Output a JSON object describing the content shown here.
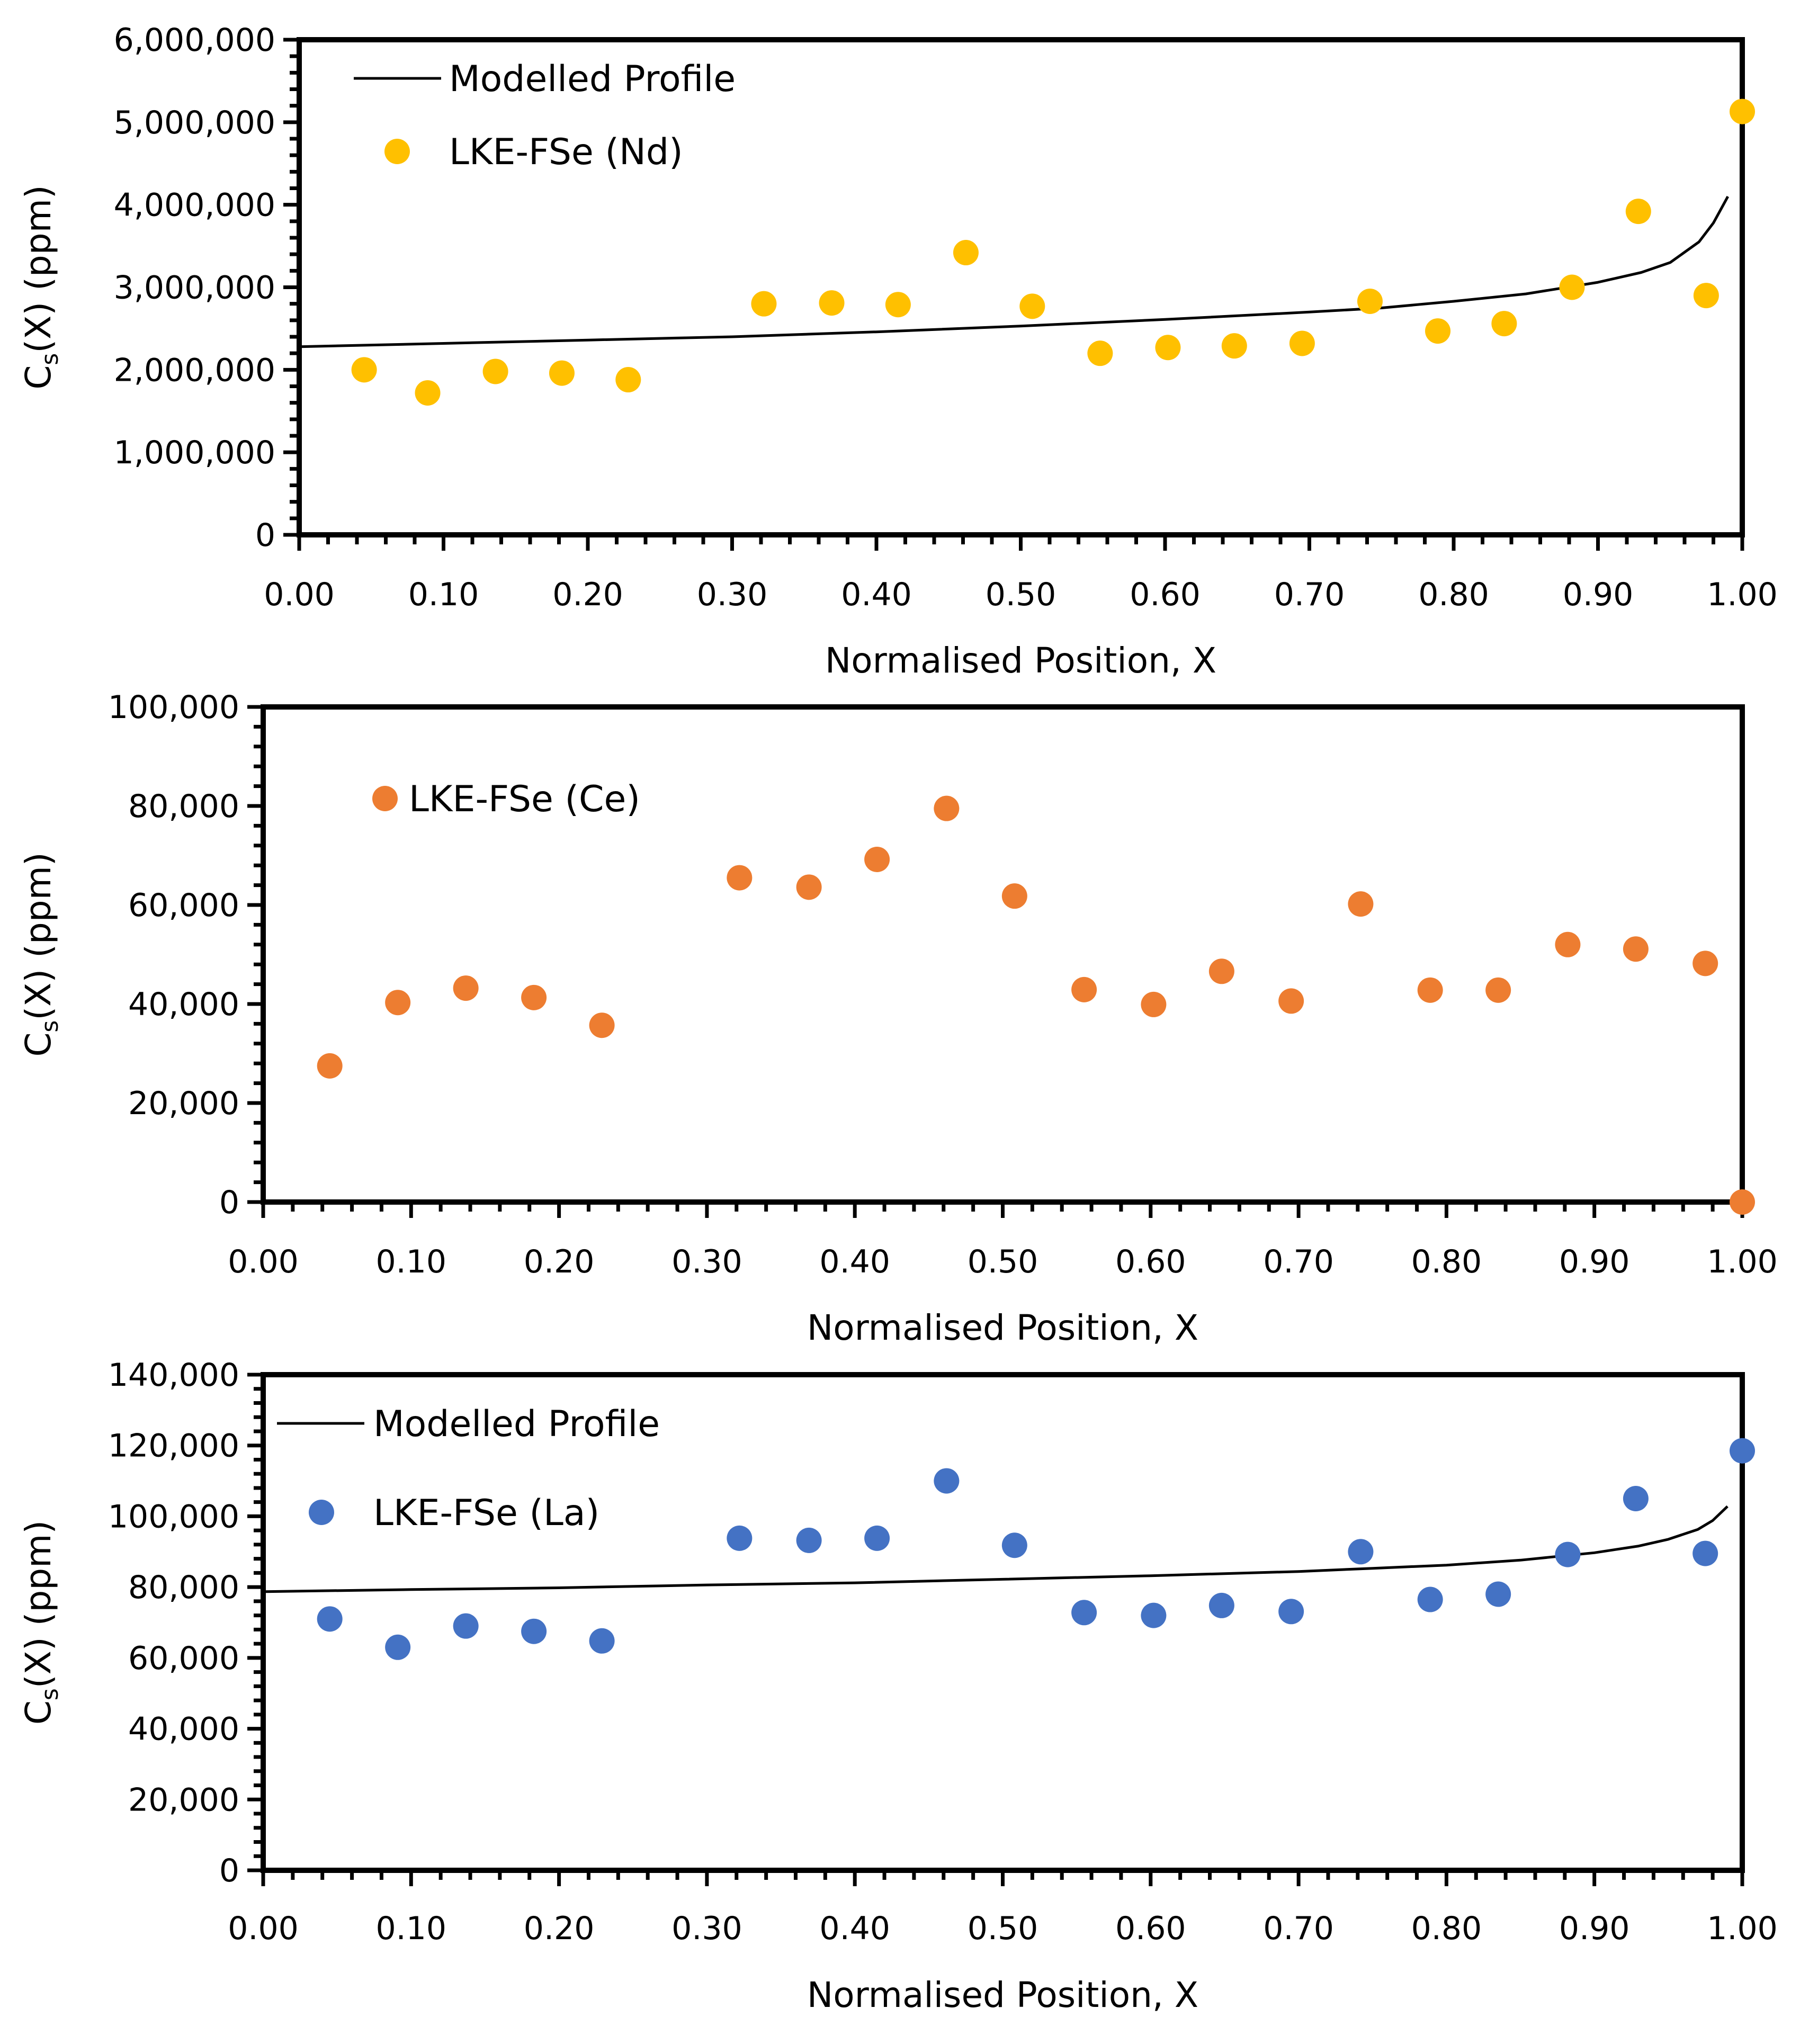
{
  "chart_data": [
    {
      "type": "scatter",
      "xlabel": "Normalised Position, X",
      "ylabel": {
        "main": "C",
        "sub": "s",
        "rest": "(X) (ppm)"
      },
      "xlim": [
        0,
        1
      ],
      "ylim": [
        0,
        6000000
      ],
      "xticks": [
        0,
        0.1,
        0.2,
        0.3,
        0.4,
        0.5,
        0.6,
        0.7,
        0.8,
        0.9,
        1.0
      ],
      "xtick_labels": [
        "0.00",
        "0.10",
        "0.20",
        "0.30",
        "0.40",
        "0.50",
        "0.60",
        "0.70",
        "0.80",
        "0.90",
        "1.00"
      ],
      "yticks": [
        0,
        1000000,
        2000000,
        3000000,
        4000000,
        5000000,
        6000000
      ],
      "ytick_labels": [
        "0",
        "1,000,000",
        "2,000,000",
        "3,000,000",
        "4,000,000",
        "5,000,000",
        "6,000,000"
      ],
      "legend_position": "top-left",
      "series": [
        {
          "name": "Modelled Profile",
          "kind": "line",
          "color": "#000000",
          "x": [
            0,
            0.1,
            0.2,
            0.3,
            0.4,
            0.5,
            0.6,
            0.7,
            0.75,
            0.8,
            0.85,
            0.9,
            0.93,
            0.95,
            0.97,
            0.98,
            0.99
          ],
          "y": [
            2280000,
            2320000,
            2360000,
            2400000,
            2460000,
            2530000,
            2610000,
            2700000,
            2750000,
            2830000,
            2920000,
            3060000,
            3180000,
            3300000,
            3550000,
            3780000,
            4100000
          ]
        },
        {
          "name": "LKE-FSe (Nd)",
          "kind": "scatter",
          "color": "#FFC000",
          "x": [
            0.045,
            0.089,
            0.136,
            0.182,
            0.228,
            0.322,
            0.369,
            0.415,
            0.462,
            0.508,
            0.555,
            0.602,
            0.648,
            0.695,
            0.742,
            0.789,
            0.835,
            0.882,
            0.928,
            0.975,
            1.0
          ],
          "y": [
            2000000,
            1720000,
            1980000,
            1960000,
            1880000,
            2800000,
            2810000,
            2790000,
            3420000,
            2770000,
            2200000,
            2270000,
            2290000,
            2320000,
            2830000,
            2470000,
            2560000,
            3000000,
            3920000,
            2900000,
            5130000
          ]
        }
      ]
    },
    {
      "type": "scatter",
      "xlabel": "Normalised Position, X",
      "ylabel": {
        "main": "C",
        "sub": "s",
        "rest": "(X) (ppm)"
      },
      "xlim": [
        0,
        1
      ],
      "ylim": [
        0,
        100000
      ],
      "xticks": [
        0,
        0.1,
        0.2,
        0.3,
        0.4,
        0.5,
        0.6,
        0.7,
        0.8,
        0.9,
        1.0
      ],
      "xtick_labels": [
        "0.00",
        "0.10",
        "0.20",
        "0.30",
        "0.40",
        "0.50",
        "0.60",
        "0.70",
        "0.80",
        "0.90",
        "1.00"
      ],
      "yticks": [
        0,
        20000,
        40000,
        60000,
        80000,
        100000
      ],
      "ytick_labels": [
        "0",
        "20,000",
        "40,000",
        "60,000",
        "80,000",
        "100,000"
      ],
      "legend_position": "top-left",
      "series": [
        {
          "name": "LKE-FSe (Ce)",
          "kind": "scatter",
          "color": "#ED7D31",
          "x": [
            0.045,
            0.091,
            0.137,
            0.183,
            0.229,
            0.322,
            0.369,
            0.415,
            0.462,
            0.508,
            0.555,
            0.602,
            0.648,
            0.695,
            0.742,
            0.789,
            0.835,
            0.882,
            0.928,
            0.975,
            1.0
          ],
          "y": [
            27500,
            40300,
            43200,
            41300,
            35700,
            65500,
            63600,
            69200,
            79500,
            61800,
            42900,
            39900,
            46600,
            40600,
            60200,
            42800,
            42800,
            52000,
            51100,
            48200,
            0
          ]
        }
      ]
    },
    {
      "type": "scatter",
      "xlabel": "Normalised Position, X",
      "ylabel": {
        "main": "C",
        "sub": "s",
        "rest": "(X) (ppm)"
      },
      "xlim": [
        0,
        1
      ],
      "ylim": [
        0,
        140000
      ],
      "xticks": [
        0,
        0.1,
        0.2,
        0.3,
        0.4,
        0.5,
        0.6,
        0.7,
        0.8,
        0.9,
        1.0
      ],
      "xtick_labels": [
        "0.00",
        "0.10",
        "0.20",
        "0.30",
        "0.40",
        "0.50",
        "0.60",
        "0.70",
        "0.80",
        "0.90",
        "1.00"
      ],
      "yticks": [
        0,
        20000,
        40000,
        60000,
        80000,
        100000,
        120000,
        140000
      ],
      "ytick_labels": [
        "0",
        "20,000",
        "40,000",
        "60,000",
        "80,000",
        "100,000",
        "120,000",
        "140,000"
      ],
      "legend_position": "top-left",
      "series": [
        {
          "name": "Modelled Profile",
          "kind": "line",
          "color": "#000000",
          "x": [
            0,
            0.1,
            0.2,
            0.3,
            0.4,
            0.5,
            0.6,
            0.7,
            0.75,
            0.8,
            0.85,
            0.9,
            0.93,
            0.95,
            0.97,
            0.98,
            0.99
          ],
          "y": [
            78700,
            79300,
            79800,
            80600,
            81200,
            82200,
            83200,
            84400,
            85300,
            86200,
            87600,
            89700,
            91600,
            93500,
            96300,
            98800,
            102800
          ]
        },
        {
          "name": "LKE-FSe (La)",
          "kind": "scatter",
          "color": "#4472C4",
          "x": [
            0.045,
            0.091,
            0.137,
            0.183,
            0.229,
            0.322,
            0.369,
            0.415,
            0.462,
            0.508,
            0.555,
            0.602,
            0.648,
            0.695,
            0.742,
            0.789,
            0.835,
            0.882,
            0.928,
            0.975,
            1.0
          ],
          "y": [
            71000,
            63000,
            69000,
            67500,
            64800,
            93800,
            93200,
            93800,
            110000,
            91800,
            72800,
            72000,
            74800,
            73100,
            90000,
            76500,
            78000,
            89200,
            105000,
            89500,
            118500
          ]
        }
      ]
    }
  ]
}
